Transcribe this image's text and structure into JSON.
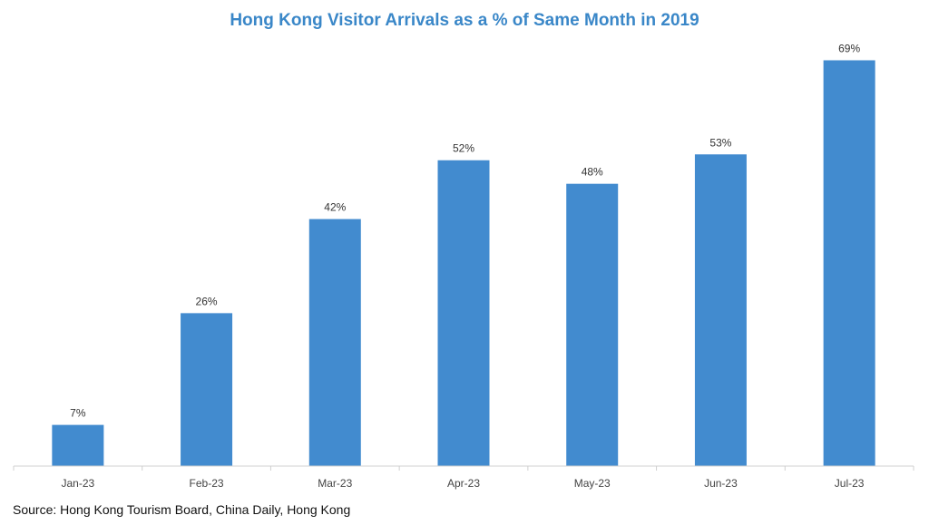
{
  "chart_data": {
    "type": "bar",
    "title": "Hong Kong Visitor Arrivals as a % of Same Month in 2019",
    "categories": [
      "Jan-23",
      "Feb-23",
      "Mar-23",
      "Apr-23",
      "May-23",
      "Jun-23",
      "Jul-23"
    ],
    "values": [
      7,
      26,
      42,
      52,
      48,
      53,
      69
    ],
    "data_labels": [
      "7%",
      "26%",
      "42%",
      "52%",
      "48%",
      "53%",
      "69%"
    ],
    "xlabel": "",
    "ylabel": "",
    "ylim": [
      0,
      70
    ],
    "grid": false,
    "legend": "none",
    "bar_color": "#428bcf",
    "title_color": "#3a87c8",
    "axis_color": "#d0d0d0"
  },
  "source": "Source: Hong Kong Tourism Board, China Daily, Hong Kong"
}
